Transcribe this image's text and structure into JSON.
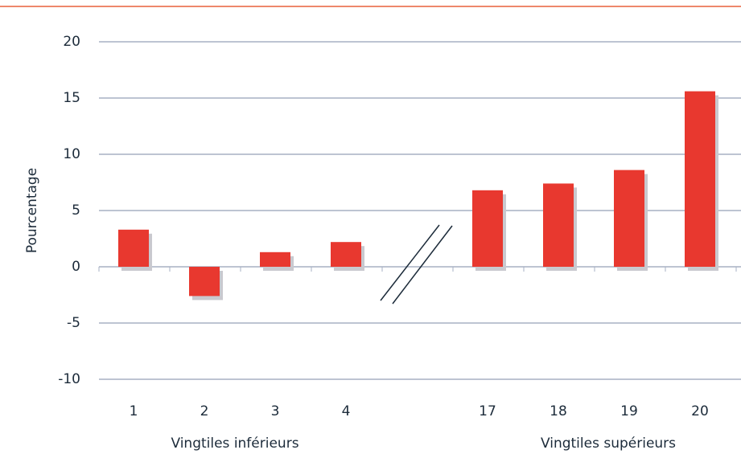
{
  "chart_data": {
    "type": "bar",
    "y_label": "Pourcentage",
    "group_labels": [
      "Vingtiles inférieurs",
      "Vingtiles supérieurs"
    ],
    "categories": [
      "1",
      "2",
      "3",
      "4",
      null,
      "17",
      "18",
      "19",
      "20"
    ],
    "values": [
      3.3,
      -2.6,
      1.3,
      2.2,
      null,
      6.8,
      7.4,
      8.6,
      15.6
    ],
    "color": "#e8382f",
    "ylim": [
      -10,
      20
    ],
    "yticks": [
      -10,
      -5,
      0,
      5,
      10,
      15,
      20
    ],
    "grid": true
  }
}
